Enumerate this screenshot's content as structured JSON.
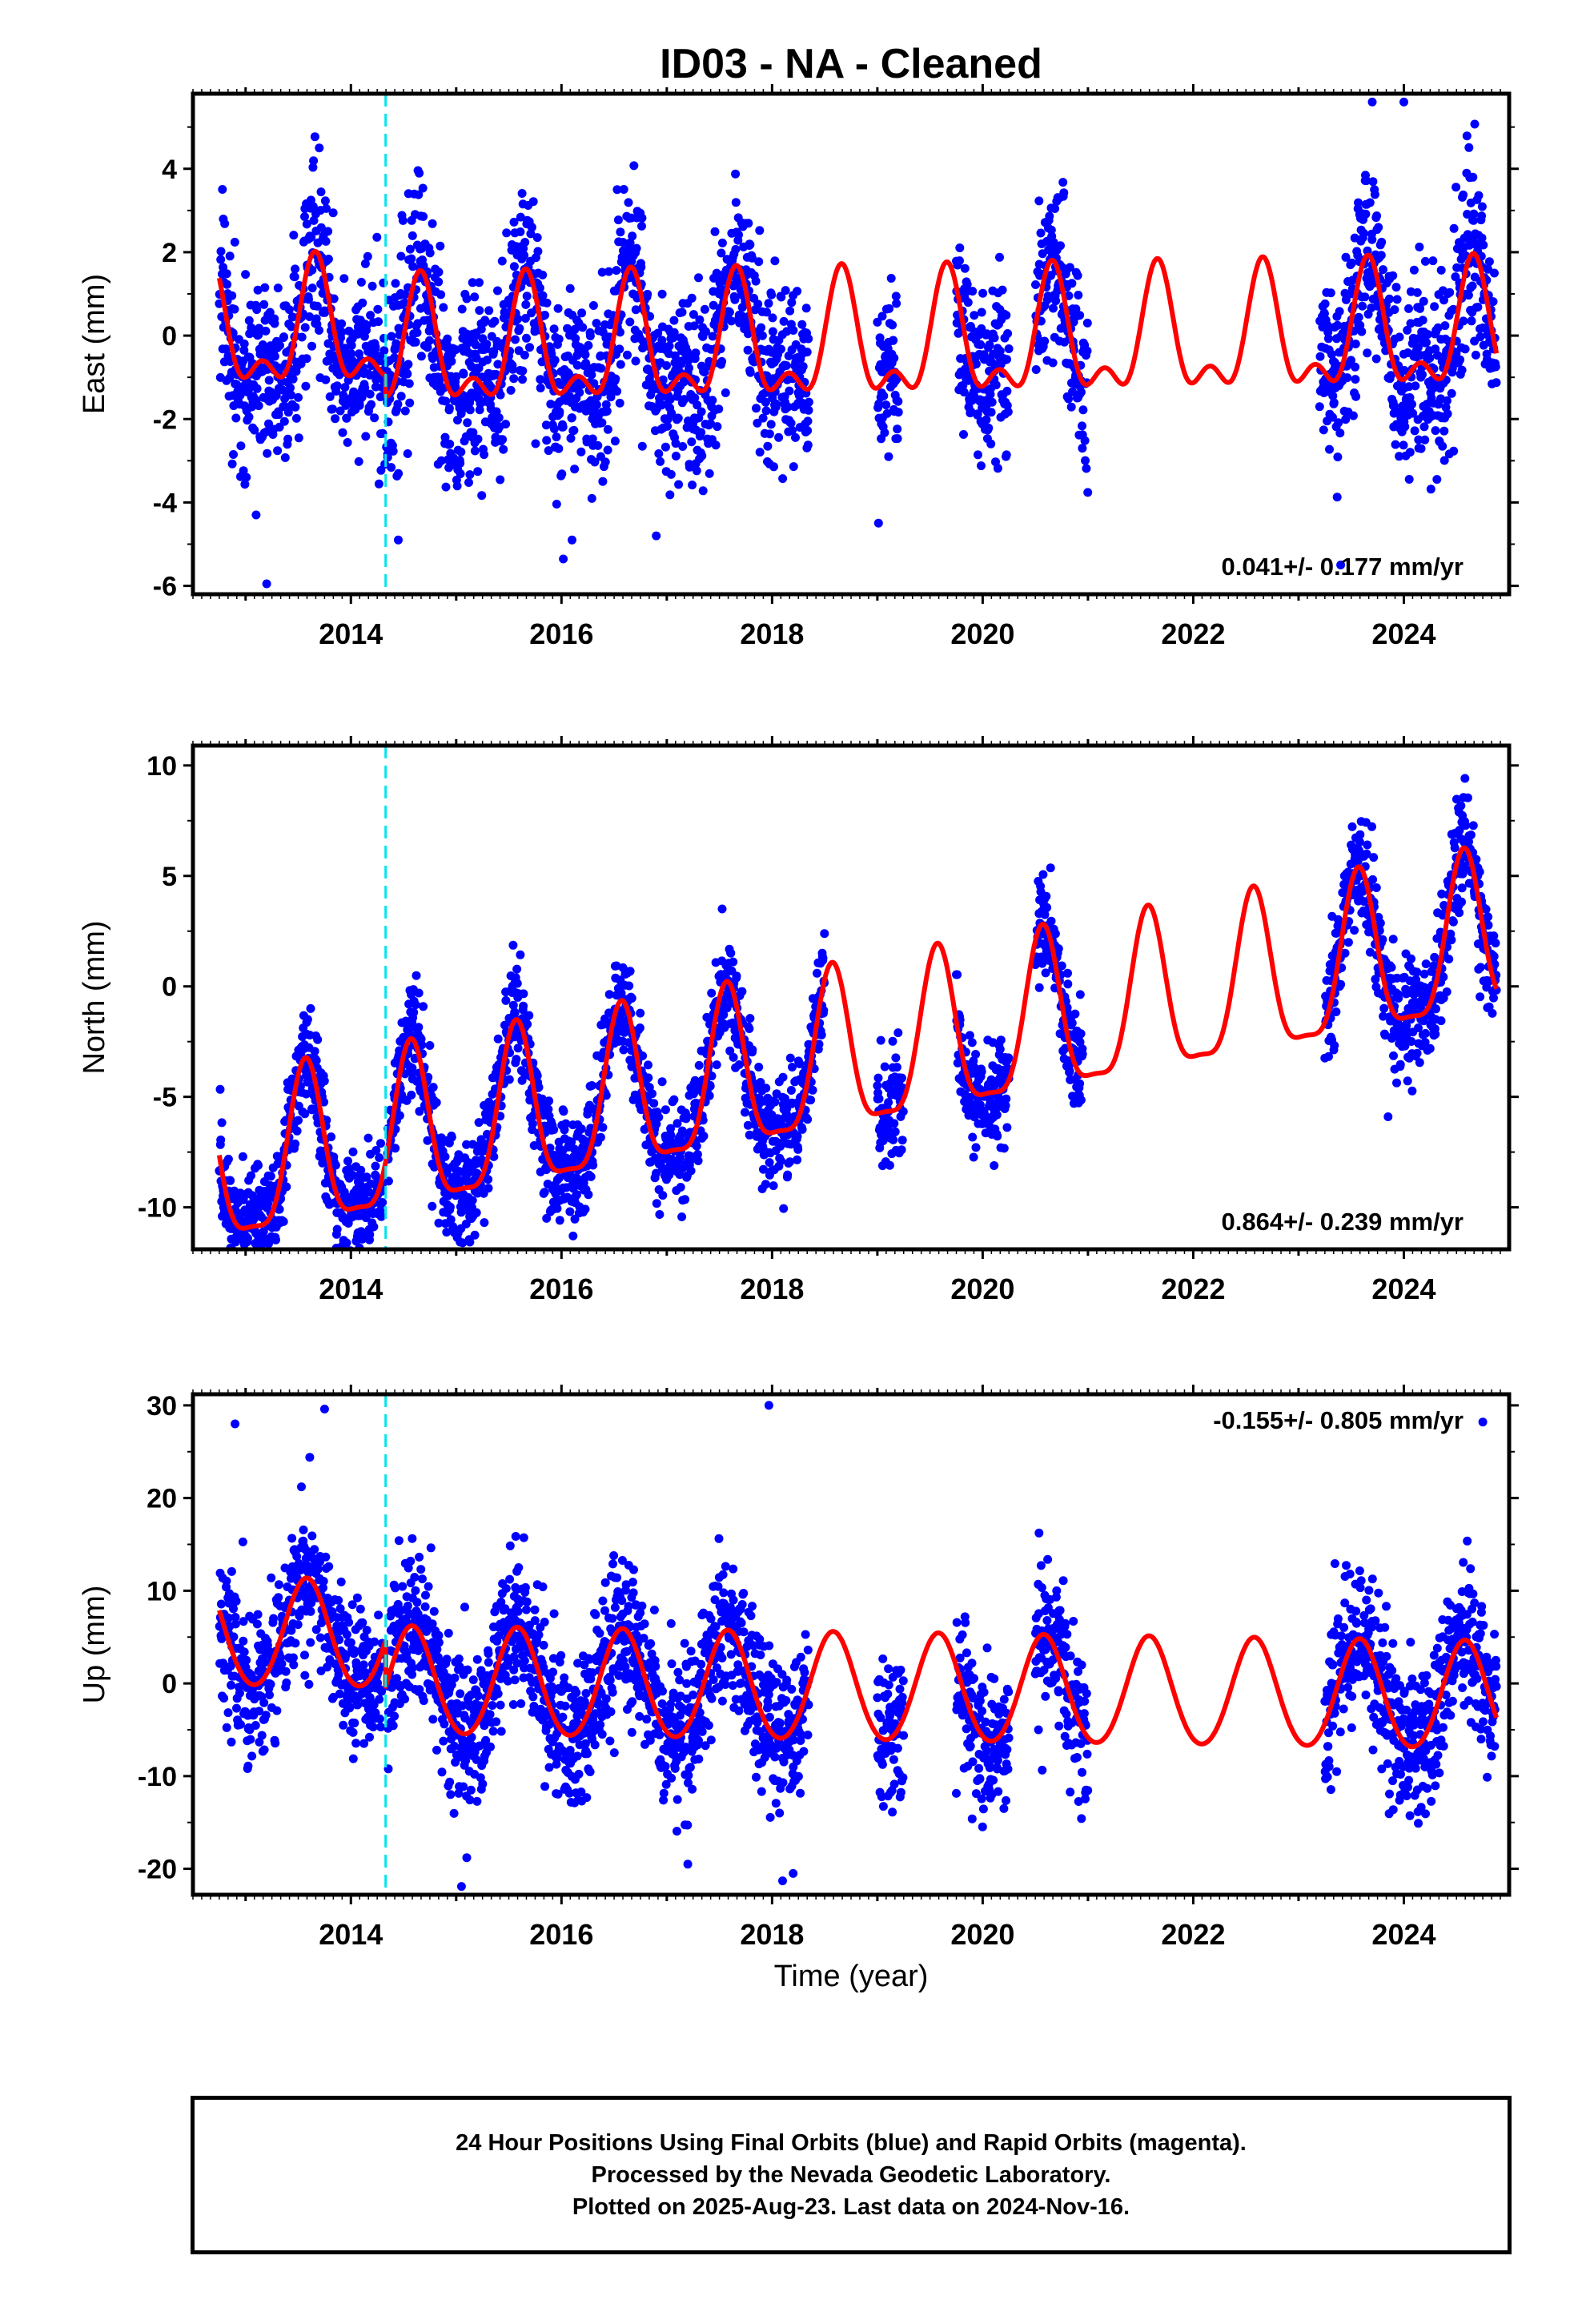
{
  "figure_title": "ID03  - NA - Cleaned",
  "colors": {
    "points": "#0000ff",
    "fit_line": "#ff0000",
    "event_line": "#00e5ee",
    "axes": "#000000"
  },
  "xaxis": {
    "label": "Time (year)",
    "range": [
      2012.5,
      2025.0
    ],
    "ticks": [
      2014,
      2016,
      2018,
      2020,
      2022,
      2024
    ],
    "tick_labels": [
      "2014",
      "2016",
      "2018",
      "2020",
      "2022",
      "2024"
    ]
  },
  "event_line_year": 2014.33,
  "chart_data": [
    {
      "id": "east",
      "type": "scatter",
      "ylabel": "East (mm)",
      "ylim": [
        -6.2,
        5.8
      ],
      "yticks": [
        4,
        2,
        0,
        -2,
        -4,
        -6
      ],
      "ytick_labels": [
        "4",
        "2",
        "0",
        "-2",
        "-4",
        "-6"
      ],
      "rate_text": "0.041+/- 0.177 mm/yr",
      "rate_position": "bottom-right",
      "data_segments": [
        [
          2012.75,
          2014.35
        ],
        [
          2014.35,
          2018.35
        ],
        [
          2019.0,
          2019.2
        ],
        [
          2019.75,
          2020.25
        ],
        [
          2020.5,
          2021.0
        ],
        [
          2023.2,
          2024.88
        ]
      ],
      "fit_model": {
        "rate": 0.041,
        "offset": 0.2,
        "offset_step": -0.5,
        "annual_amp": 1.3,
        "annual_phase": 2013.66,
        "semi_amp": 0.7,
        "semi_phase": 2013.66
      },
      "scatter_sd": 1.1,
      "outliers": [
        [
          2013.2,
          -5.95
        ],
        [
          2023.4,
          -5.5
        ],
        [
          2023.7,
          5.6
        ],
        [
          2024.0,
          5.6
        ],
        [
          2014.45,
          -4.9
        ],
        [
          2016.1,
          -4.9
        ],
        [
          2016.9,
          -4.8
        ],
        [
          2013.1,
          -4.3
        ],
        [
          2013.7,
          4.5
        ]
      ]
    },
    {
      "id": "north",
      "type": "scatter",
      "ylabel": "North (mm)",
      "ylim": [
        -11.9,
        10.9
      ],
      "yticks": [
        10,
        5,
        0,
        -5,
        -10
      ],
      "ytick_labels": [
        "10",
        "5",
        "0",
        "-5",
        "-10"
      ],
      "rate_text": "0.864+/- 0.239 mm/yr",
      "rate_position": "bottom-right",
      "data_segments": [
        [
          2012.75,
          2014.3
        ],
        [
          2014.35,
          2018.5
        ],
        [
          2019.0,
          2019.25
        ],
        [
          2019.75,
          2020.25
        ],
        [
          2020.5,
          2020.95
        ],
        [
          2023.25,
          2024.88
        ]
      ],
      "fit_model": {
        "rate": 0.864,
        "offset": -4.0,
        "offset_step": 0.0,
        "annual_amp": 3.6,
        "annual_phase": 2013.57,
        "semi_amp": 1.0,
        "semi_phase": 2013.57
      },
      "scatter_sd": 1.2,
      "outliers": [
        [
          2013.0,
          -11.5
        ],
        [
          2017.1,
          -6.2
        ],
        [
          2019.1,
          -6.3
        ],
        [
          2023.85,
          -5.9
        ],
        [
          2015.85,
          -7.6
        ]
      ]
    },
    {
      "id": "up",
      "type": "scatter",
      "ylabel": "Up (mm)",
      "ylim": [
        -22.8,
        31.2
      ],
      "yticks": [
        30,
        20,
        10,
        0,
        -10,
        -20
      ],
      "ytick_labels": [
        "30",
        "20",
        "10",
        "0",
        "-10",
        "-20"
      ],
      "rate_text": "-0.155+/- 0.805 mm/yr",
      "rate_position": "top-right",
      "data_segments": [
        [
          2012.75,
          2014.3
        ],
        [
          2014.35,
          2018.35
        ],
        [
          2019.0,
          2019.25
        ],
        [
          2019.75,
          2020.25
        ],
        [
          2020.5,
          2021.0
        ],
        [
          2023.25,
          2024.88
        ]
      ],
      "fit_model": {
        "rate": -0.155,
        "offset": 4.5,
        "offset_step": -5.0,
        "annual_amp": 5.8,
        "annual_phase": 2012.58,
        "semi_amp": 0.4,
        "semi_phase": 2012.58
      },
      "scatter_sd": 4.0,
      "outliers": [
        [
          2012.9,
          28.0
        ],
        [
          2013.75,
          29.6
        ],
        [
          2017.97,
          30.0
        ],
        [
          2024.75,
          28.2
        ],
        [
          2015.05,
          -21.9
        ],
        [
          2018.1,
          -21.3
        ],
        [
          2018.2,
          -20.5
        ],
        [
          2015.1,
          -18.8
        ],
        [
          2017.2,
          -19.5
        ]
      ]
    }
  ],
  "footer": {
    "line1": "24 Hour Positions Using Final Orbits (blue) and Rapid Orbits (magenta).",
    "line2": "Processed by the Nevada Geodetic Laboratory.",
    "line3": "Plotted on 2025-Aug-23. Last data on 2024-Nov-16."
  }
}
